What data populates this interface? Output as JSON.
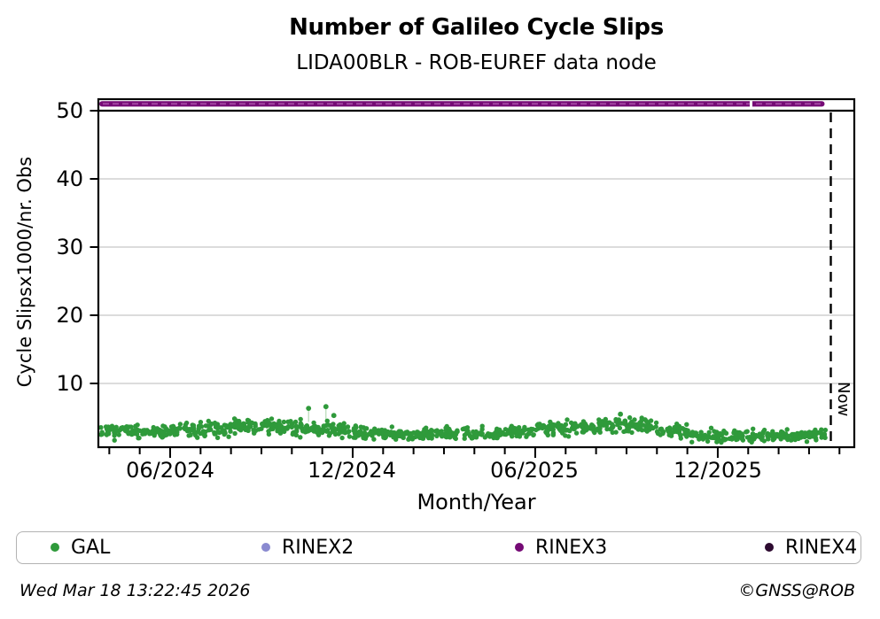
{
  "header": {
    "title": "Number of Galileo Cycle Slips",
    "subtitle": "LIDA00BLR - ROB-EUREF data node"
  },
  "footer": {
    "timestamp": "Wed Mar 18 13:22:45 2026",
    "credit": "©GNSS@ROB"
  },
  "legend": {
    "items": [
      {
        "label": "GAL",
        "color": "#2f9a3b"
      },
      {
        "label": "RINEX2",
        "color": "#8a8ad0"
      },
      {
        "label": "RINEX3",
        "color": "#750a75"
      },
      {
        "label": "RINEX4",
        "color": "#2d0a30"
      }
    ]
  },
  "chart_data": {
    "type": "scatter",
    "title": "Number of Galileo Cycle Slips",
    "subtitle": "LIDA00BLR - ROB-EUREF data node",
    "xlabel": "Month/Year",
    "ylabel": "Cycle Slipsx1000/nr. Obs",
    "x_axis": {
      "tick_labels": [
        "06/2024",
        "12/2024",
        "06/2025",
        "12/2025"
      ],
      "minor_tick_interval": "1 month",
      "range_start": "2024-03",
      "range_end": "2026-04"
    },
    "y_axis": {
      "tick_labels": [
        "10",
        "20",
        "30",
        "40",
        "50"
      ],
      "ticks": [
        10,
        20,
        30,
        40,
        50
      ],
      "range": [
        0.65,
        51.8
      ],
      "grid": true,
      "grid_color": "#c8c8c8"
    },
    "dark_rule_y": 50,
    "now_marker": {
      "label": "Now",
      "date": "2026-03-18"
    },
    "series": [
      {
        "name": "GAL",
        "type": "daily-scatter",
        "color": "#2f9a3b",
        "monthly_stats": [
          {
            "month": "2024-03",
            "mean": 2.8,
            "spread": 0.95
          },
          {
            "month": "2024-04",
            "mean": 2.9,
            "spread": 0.95
          },
          {
            "month": "2024-05",
            "mean": 2.9,
            "spread": 0.9
          },
          {
            "month": "2024-06",
            "mean": 3.1,
            "spread": 0.95
          },
          {
            "month": "2024-07",
            "mean": 3.3,
            "spread": 1.0
          },
          {
            "month": "2024-08",
            "mean": 3.6,
            "spread": 1.0
          },
          {
            "month": "2024-09",
            "mean": 3.8,
            "spread": 1.05
          },
          {
            "month": "2024-10",
            "mean": 3.4,
            "spread": 1.1
          },
          {
            "month": "2024-11",
            "mean": 3.3,
            "spread": 1.15
          },
          {
            "month": "2024-12",
            "mean": 2.8,
            "spread": 0.9
          },
          {
            "month": "2025-01",
            "mean": 2.6,
            "spread": 0.85
          },
          {
            "month": "2025-02",
            "mean": 2.5,
            "spread": 0.85
          },
          {
            "month": "2025-03",
            "mean": 2.6,
            "spread": 0.85
          },
          {
            "month": "2025-04",
            "mean": 2.7,
            "spread": 0.9
          },
          {
            "month": "2025-05",
            "mean": 3.0,
            "spread": 0.95
          },
          {
            "month": "2025-06",
            "mean": 3.4,
            "spread": 1.0
          },
          {
            "month": "2025-07",
            "mean": 3.6,
            "spread": 1.0
          },
          {
            "month": "2025-08",
            "mean": 3.8,
            "spread": 1.05
          },
          {
            "month": "2025-09",
            "mean": 3.9,
            "spread": 1.05
          },
          {
            "month": "2025-10",
            "mean": 3.0,
            "spread": 1.0
          },
          {
            "month": "2025-11",
            "mean": 2.4,
            "spread": 0.85
          },
          {
            "month": "2025-12",
            "mean": 2.35,
            "spread": 0.8
          },
          {
            "month": "2026-01",
            "mean": 2.3,
            "spread": 0.8
          },
          {
            "month": "2026-02",
            "mean": 2.4,
            "spread": 0.8
          },
          {
            "month": "2026-03",
            "mean": 2.5,
            "spread": 0.8
          }
        ],
        "outliers": [
          {
            "month": "2024-10",
            "frac": 0.55,
            "value": 6.35
          },
          {
            "month": "2024-11",
            "frac": 0.12,
            "value": 6.6
          },
          {
            "month": "2024-11",
            "frac": 0.38,
            "value": 5.3
          },
          {
            "month": "2025-08",
            "frac": 0.8,
            "value": 5.5
          }
        ]
      },
      {
        "name": "RINEX2",
        "type": "constant-line",
        "color": "#8a8ad0",
        "visible_points": false
      },
      {
        "name": "RINEX3",
        "type": "constant-line",
        "color": "#750a75",
        "constant_value": 51,
        "start": "2024-03",
        "end": "2026-03-18",
        "gap_at": "2026-01"
      },
      {
        "name": "RINEX4",
        "type": "constant-line",
        "color": "#2d0a30",
        "visible_points": false
      }
    ]
  }
}
